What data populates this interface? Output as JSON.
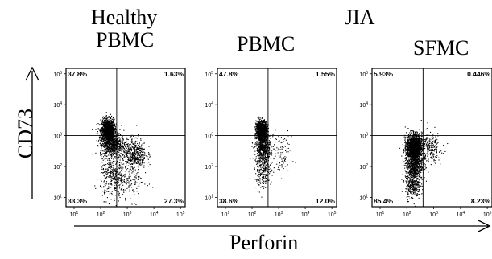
{
  "headers": {
    "group_left": "Healthy",
    "group_right": "JIA",
    "panel_labels": [
      "PBMC",
      "PBMC",
      "SFMC"
    ]
  },
  "axes": {
    "x_title": "Perforin",
    "y_title": "CD73"
  },
  "chart_data": [
    {
      "type": "scatter",
      "title": "Healthy PBMC",
      "xlabel": "Perforin",
      "ylabel": "CD73",
      "scale": "log",
      "xlim": [
        5,
        150000
      ],
      "ylim": [
        5,
        150000
      ],
      "x_ticks": [
        "10^1",
        "10^2",
        "10^3",
        "10^4",
        "10^5"
      ],
      "y_ticks": [
        "10^1",
        "10^2",
        "10^3",
        "10^4",
        "10^5"
      ],
      "gate": {
        "x": 400,
        "y": 1000
      },
      "quadrants": {
        "upper_left": "37.8%",
        "upper_right": "1.63%",
        "lower_left": "33.3%",
        "lower_right": "27.3%"
      },
      "populations": [
        {
          "cx": 180,
          "cy": 1500,
          "sx": 0.12,
          "sy": 0.18,
          "n": 1500
        },
        {
          "cx": 260,
          "cy": 550,
          "sx": 0.22,
          "sy": 0.22,
          "n": 700
        },
        {
          "cx": 1800,
          "cy": 280,
          "sx": 0.22,
          "sy": 0.25,
          "n": 450
        },
        {
          "cx": 300,
          "cy": 50,
          "sx": 0.25,
          "sy": 0.35,
          "n": 400
        },
        {
          "cx": 1500,
          "cy": 40,
          "sx": 0.28,
          "sy": 0.35,
          "n": 120
        }
      ]
    },
    {
      "type": "scatter",
      "title": "JIA PBMC",
      "xlabel": "Perforin",
      "ylabel": "CD73",
      "scale": "log",
      "xlim": [
        5,
        150000
      ],
      "ylim": [
        5,
        150000
      ],
      "x_ticks": [
        "10^1",
        "10^2",
        "10^3",
        "10^4",
        "10^5"
      ],
      "y_ticks": [
        "10^1",
        "10^2",
        "10^3",
        "10^4",
        "10^5"
      ],
      "gate": {
        "x": 400,
        "y": 1000
      },
      "quadrants": {
        "upper_left": "47.8%",
        "upper_right": "1.55%",
        "lower_left": "38.6%",
        "lower_right": "12.0%"
      },
      "populations": [
        {
          "cx": 220,
          "cy": 1500,
          "sx": 0.1,
          "sy": 0.15,
          "n": 1300
        },
        {
          "cx": 260,
          "cy": 400,
          "sx": 0.14,
          "sy": 0.22,
          "n": 600
        },
        {
          "cx": 250,
          "cy": 80,
          "sx": 0.16,
          "sy": 0.3,
          "n": 250
        },
        {
          "cx": 1200,
          "cy": 300,
          "sx": 0.2,
          "sy": 0.3,
          "n": 100
        }
      ]
    },
    {
      "type": "scatter",
      "title": "JIA SFMC",
      "xlabel": "Perforin",
      "ylabel": "CD73",
      "scale": "log",
      "xlim": [
        5,
        150000
      ],
      "ylim": [
        5,
        150000
      ],
      "x_ticks": [
        "10^1",
        "10^2",
        "10^3",
        "10^4",
        "10^5"
      ],
      "y_ticks": [
        "10^1",
        "10^2",
        "10^3",
        "10^4",
        "10^5"
      ],
      "gate": {
        "x": 400,
        "y": 1000
      },
      "quadrants": {
        "upper_left": "5.93%",
        "upper_right": "0.446%",
        "lower_left": "85.4%",
        "lower_right": "8.23%"
      },
      "populations": [
        {
          "cx": 180,
          "cy": 450,
          "sx": 0.14,
          "sy": 0.2,
          "n": 1500
        },
        {
          "cx": 180,
          "cy": 120,
          "sx": 0.16,
          "sy": 0.25,
          "n": 800
        },
        {
          "cx": 160,
          "cy": 25,
          "sx": 0.14,
          "sy": 0.22,
          "n": 300
        },
        {
          "cx": 700,
          "cy": 400,
          "sx": 0.22,
          "sy": 0.25,
          "n": 250
        }
      ]
    }
  ]
}
